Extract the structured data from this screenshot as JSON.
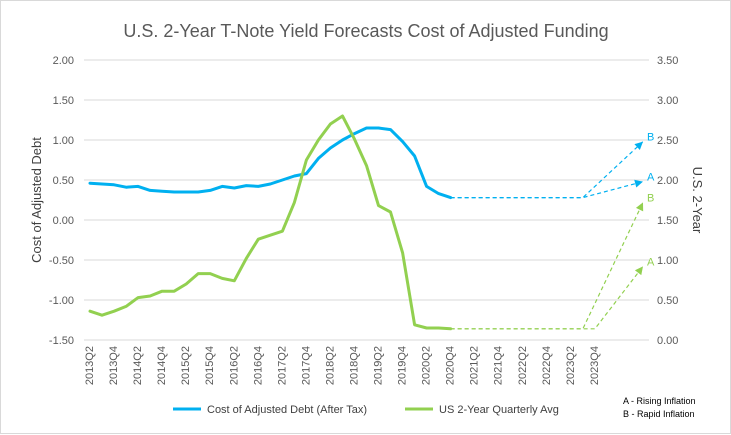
{
  "chart_data": {
    "type": "line",
    "title": "U.S. 2-Year T-Note Yield Forecasts Cost of Adjusted Funding",
    "ylabel_left": "Cost of Adjusted Debt",
    "ylabel_right": "U.S. 2-Year",
    "ylim_left": [
      -1.5,
      2.0
    ],
    "ylim_right": [
      0.0,
      3.5
    ],
    "yticks_left": [
      "-1.50",
      "-1.00",
      "-0.50",
      "0.00",
      "0.50",
      "1.00",
      "1.50",
      "2.00"
    ],
    "yticks_right": [
      "0.00",
      "0.50",
      "1.00",
      "1.50",
      "2.00",
      "2.50",
      "3.00",
      "3.50"
    ],
    "x_labels": [
      "2013Q2",
      "2013Q4",
      "2014Q2",
      "2014Q4",
      "2015Q2",
      "2015Q4",
      "2016Q2",
      "2016Q4",
      "2017Q2",
      "2017Q4",
      "2018Q2",
      "2018Q4",
      "2019Q2",
      "2019Q4",
      "2020Q2",
      "2020Q4",
      "2021Q2",
      "2021Q4",
      "2022Q2",
      "2022Q4",
      "2023Q2",
      "2023Q4"
    ],
    "series": [
      {
        "name": "Cost of Adjusted Debt (After Tax)",
        "axis": "left",
        "color": "#00b0f0",
        "values": [
          0.46,
          0.45,
          0.44,
          0.41,
          0.42,
          0.37,
          0.36,
          0.35,
          0.35,
          0.35,
          0.37,
          0.42,
          0.4,
          0.43,
          0.42,
          0.45,
          0.5,
          0.55,
          0.58,
          0.77,
          0.9,
          1.0,
          1.08,
          1.15,
          1.15,
          1.13,
          0.98,
          0.8,
          0.42,
          0.33,
          0.28
        ]
      },
      {
        "name": "US 2-Year Quarterly Avg",
        "axis": "right",
        "color": "#92d050",
        "values": [
          0.36,
          0.31,
          0.36,
          0.42,
          0.53,
          0.55,
          0.61,
          0.61,
          0.7,
          0.83,
          0.83,
          0.77,
          0.74,
          1.02,
          1.26,
          1.31,
          1.36,
          1.72,
          2.25,
          2.5,
          2.7,
          2.8,
          2.51,
          2.18,
          1.68,
          1.6,
          1.09,
          0.19,
          0.15,
          0.15,
          0.14
        ]
      }
    ],
    "forecasts": [
      {
        "series": "Cost of Adjusted Debt (After Tax)",
        "label": "B",
        "color": "#00b0f0",
        "start_index": 30,
        "flat_value": 0.28,
        "flat_end_index": 41,
        "end_index": 46,
        "end_value": 0.98
      },
      {
        "series": "Cost of Adjusted Debt (After Tax)",
        "label": "A",
        "color": "#00b0f0",
        "start_index": 30,
        "flat_value": 0.28,
        "flat_end_index": 41,
        "end_index": 46,
        "end_value": 0.48
      },
      {
        "series": "US 2-Year Quarterly Avg",
        "label": "B",
        "color": "#92d050",
        "start_index": 30,
        "flat_value": 0.14,
        "flat_end_index": 41,
        "end_index": 46,
        "end_value": 1.72
      },
      {
        "series": "US 2-Year Quarterly Avg",
        "label": "A",
        "color": "#92d050",
        "start_index": 30,
        "flat_value": 0.14,
        "flat_end_index": 42,
        "end_index": 46,
        "end_value": 0.92
      }
    ],
    "legend_position": "bottom",
    "grid": "horizontal",
    "notes": [
      "A - Rising Inflation",
      "B - Rapid Inflation"
    ]
  }
}
